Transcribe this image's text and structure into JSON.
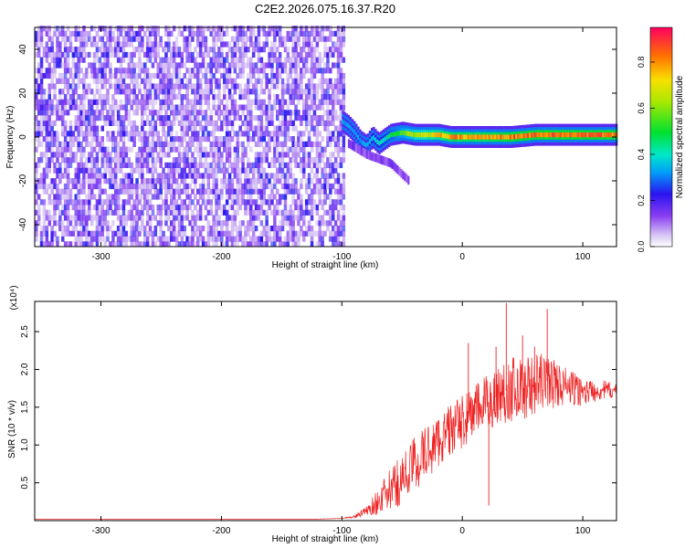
{
  "figure": {
    "title": "C2E2.2026.075.16.37.R20"
  },
  "chart_data": [
    {
      "type": "heatmap",
      "title": "C2E2.2026.075.16.37.R20",
      "xlabel": "Height of straight line (km)",
      "ylabel": "Frequency (Hz)",
      "xlim": [
        -355,
        128
      ],
      "ylim": [
        -50,
        50
      ],
      "xticks": [
        -300,
        -200,
        -100,
        0,
        100
      ],
      "yticks": [
        -40,
        -20,
        0,
        20,
        40
      ],
      "colorbar": {
        "label": "Normalized spectral amplitude",
        "range": [
          0,
          0.95
        ],
        "ticks": [
          0.0,
          0.2,
          0.4,
          0.6,
          0.8
        ],
        "tick_labels": [
          "0.0",
          "0.2",
          "0.4",
          "0.6",
          "0.8"
        ]
      },
      "features": {
        "noise_region_x": [
          -355,
          -100
        ],
        "noise_amplitude": [
          0.05,
          0.25
        ],
        "tone_track": {
          "x": [
            -100,
            -95,
            -90,
            -85,
            -80,
            -75,
            -70,
            -65,
            -60,
            -50,
            -40,
            -30,
            -20,
            -10,
            0,
            20,
            40,
            60,
            80,
            100,
            128
          ],
          "frequency": [
            7,
            5,
            2,
            -2,
            -4,
            0,
            -3,
            -1,
            1,
            2,
            1,
            1,
            1,
            0,
            0,
            0,
            0,
            1,
            1,
            1,
            1
          ],
          "amplitude": [
            0.35,
            0.35,
            0.35,
            0.35,
            0.35,
            0.4,
            0.4,
            0.45,
            0.5,
            0.6,
            0.7,
            0.75,
            0.8,
            0.85,
            0.85,
            0.85,
            0.9,
            0.9,
            0.9,
            0.9,
            0.9
          ]
        },
        "tail": {
          "x": [
            -95,
            -80,
            -60,
            -45
          ],
          "frequency": [
            -3,
            -8,
            -12,
            -20
          ]
        }
      },
      "grid": false
    },
    {
      "type": "line",
      "xlabel": "Height of straight line (km)",
      "ylabel": "SNR (10 * v/v)",
      "multiplier_label": "(x10⁴)",
      "xlim": [
        -355,
        128
      ],
      "ylim": [
        0,
        2.9
      ],
      "xticks": [
        -300,
        -200,
        -100,
        0,
        100
      ],
      "yticks": [
        0.5,
        1.0,
        1.5,
        2.0,
        2.5
      ],
      "ytick_labels": [
        "0.5",
        "1.0",
        "1.5",
        "2.0",
        "2.5"
      ],
      "color": "#ee2222",
      "series": [
        {
          "x": [
            -355,
            -300,
            -200,
            -120,
            -100,
            -90,
            -80,
            -70,
            -60,
            -50,
            -40,
            -30,
            -20,
            -10,
            0,
            10,
            20,
            30,
            40,
            50,
            60,
            70,
            80,
            90,
            100,
            110,
            120,
            128
          ],
          "values": [
            0.02,
            0.02,
            0.02,
            0.02,
            0.03,
            0.05,
            0.12,
            0.25,
            0.4,
            0.55,
            0.75,
            0.9,
            1.05,
            1.2,
            1.3,
            1.45,
            1.55,
            1.65,
            1.75,
            1.75,
            1.8,
            1.85,
            1.8,
            1.75,
            1.7,
            1.72,
            1.73,
            1.7
          ],
          "noise_amplitude": [
            0,
            0,
            0,
            0,
            0,
            0.02,
            0.06,
            0.18,
            0.28,
            0.35,
            0.38,
            0.38,
            0.35,
            0.35,
            0.35,
            0.35,
            0.38,
            0.42,
            0.45,
            0.42,
            0.4,
            0.38,
            0.3,
            0.25,
            0.18,
            0.15,
            0.12,
            0.1
          ]
        }
      ],
      "spikes": [
        {
          "x": 36.5,
          "y": 2.88
        },
        {
          "x": 70.5,
          "y": 2.8
        },
        {
          "x": 5,
          "y": 2.35
        },
        {
          "x": 28,
          "y": 2.3
        },
        {
          "x": 50,
          "y": 2.45
        },
        {
          "x": 60,
          "y": 2.3
        },
        {
          "x": 22,
          "y": 0.2
        }
      ],
      "grid": false
    }
  ]
}
